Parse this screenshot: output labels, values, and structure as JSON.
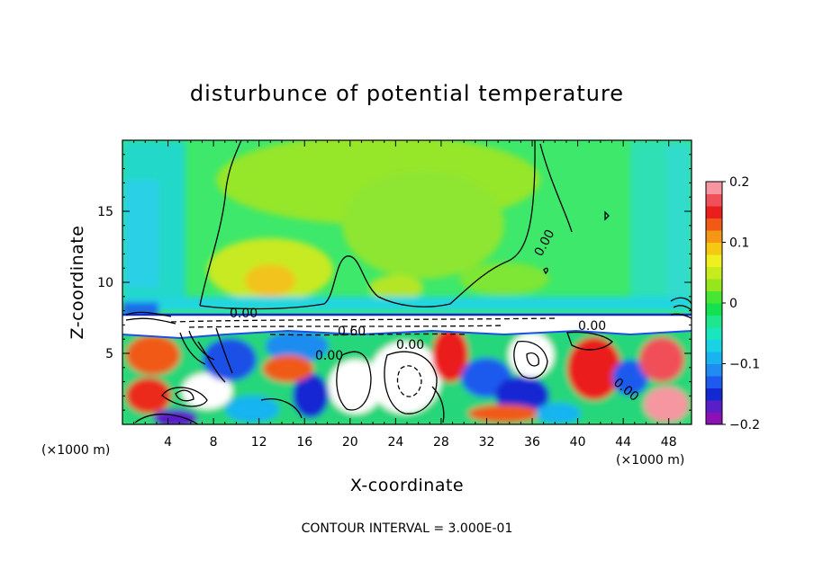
{
  "chart_data": {
    "type": "heatmap",
    "title": "disturbunce of potential temperature",
    "xlabel": "X-coordinate",
    "ylabel": "Z-coordinate",
    "x_unit": "(×1000 m)",
    "z_unit": "(×1000 m)",
    "xlim": [
      0,
      50
    ],
    "ylim": [
      0,
      20
    ],
    "x_ticks": [
      4,
      8,
      12,
      16,
      20,
      24,
      28,
      32,
      36,
      40,
      44,
      48
    ],
    "y_ticks": [
      5,
      10,
      15
    ],
    "colorbar": {
      "range": [
        -0.2,
        0.2
      ],
      "ticks": [
        {
          "value": 0.2,
          "label": "0.2"
        },
        {
          "value": 0.1,
          "label": "0.1"
        },
        {
          "value": 0,
          "label": "0"
        },
        {
          "value": -0.1,
          "label": "−0.1"
        },
        {
          "value": -0.2,
          "label": "−0.2"
        }
      ],
      "colors": [
        "#8c10b4",
        "#5a1ec8",
        "#1428d2",
        "#1e5aee",
        "#1e8cf0",
        "#19b4f0",
        "#19d2e6",
        "#19e6be",
        "#1ee68c",
        "#14e150",
        "#46e632",
        "#96e61e",
        "#c8eb1e",
        "#f0f01e",
        "#f5c814",
        "#f59614",
        "#f05a14",
        "#eb1e1e",
        "#f0505a",
        "#f596a0"
      ]
    },
    "contour_interval": "CONTOUR INTERVAL = 3.000E-01",
    "contour_labels": [
      {
        "text": "0.00",
        "x": 18.5,
        "z": 7.8
      },
      {
        "text": "0.60",
        "x": 30.0,
        "z": 6.6
      },
      {
        "text": "0.00",
        "x": 37.0,
        "z": 5.8
      },
      {
        "text": "0.00",
        "x": 28.7,
        "z": 4.8
      },
      {
        "text": "0.00",
        "x": 48.0,
        "z": 6.7
      },
      {
        "text": "0.00",
        "x": 50.5,
        "z": 10.6
      },
      {
        "text": "0.00",
        "x": 56.8,
        "z": 2.6
      }
    ]
  }
}
